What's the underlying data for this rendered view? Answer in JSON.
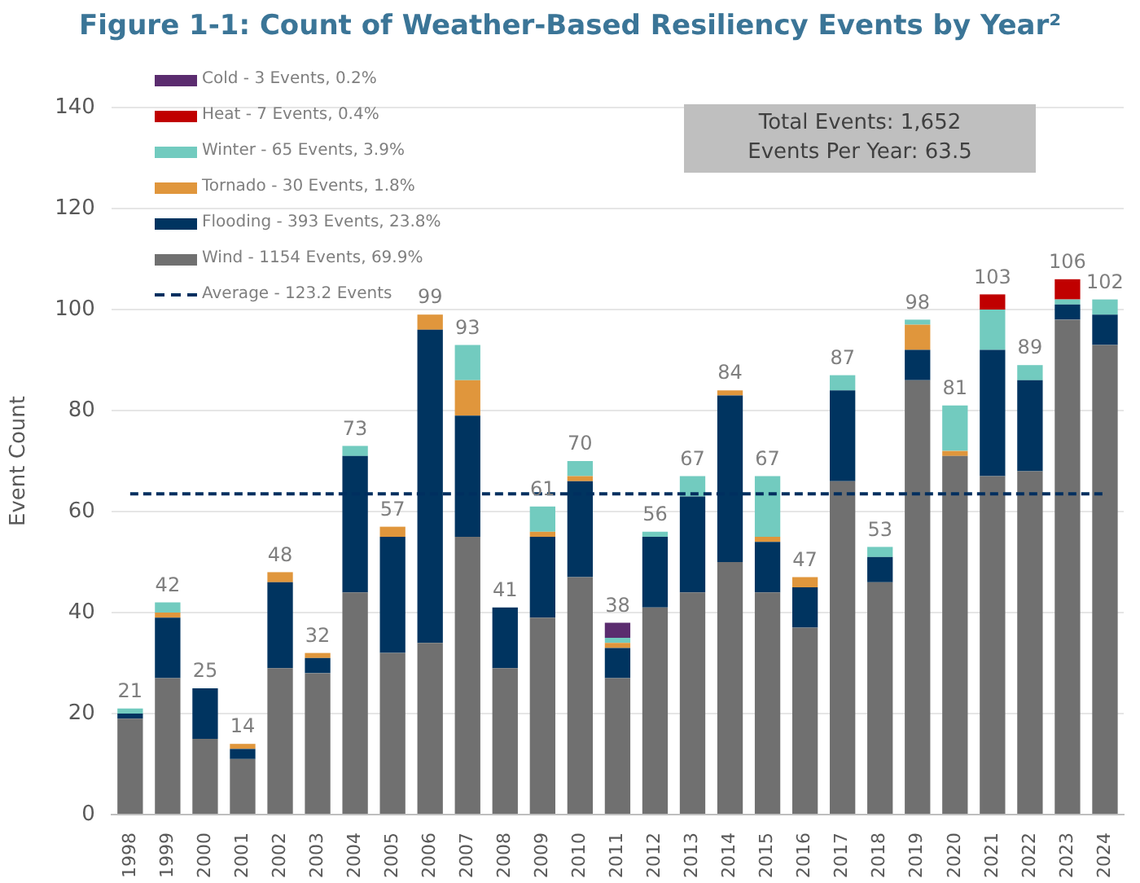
{
  "chart_data": {
    "type": "bar",
    "title": "Figure 1-1: Count of Weather-Based Resiliency Events by Year²",
    "ylabel": "Event Count",
    "categories": [
      "1998",
      "1999",
      "2000",
      "2001",
      "2002",
      "2003",
      "2004",
      "2005",
      "2006",
      "2007",
      "2008",
      "2009",
      "2010",
      "2011",
      "2012",
      "2013",
      "2014",
      "2015",
      "2016",
      "2017",
      "2018",
      "2019",
      "2020",
      "2021",
      "2022",
      "2023",
      "2024"
    ],
    "stacked": true,
    "series": [
      {
        "name": "Average - 123.2 Events",
        "type": "line",
        "line_style": "dashed",
        "marker": "none",
        "color": "#002f5f",
        "values": [
          63.5,
          63.5,
          63.5,
          63.5,
          63.5,
          63.5,
          63.5,
          63.5,
          63.5,
          63.5,
          63.5,
          63.5,
          63.5,
          63.5,
          63.5,
          63.5,
          63.5,
          63.5,
          63.5,
          63.5,
          63.5,
          63.5,
          63.5,
          63.5,
          63.5,
          63.5,
          63.5
        ]
      },
      {
        "name": "Wind - 1154 Events, 69.9%",
        "color": "#707070",
        "values": [
          19,
          27,
          15,
          11,
          29,
          28,
          44,
          32,
          34,
          55,
          29,
          39,
          47,
          27,
          41,
          44,
          50,
          44,
          37,
          66,
          46,
          86,
          71,
          67,
          68,
          98,
          93
        ]
      },
      {
        "name": "Flooding - 393 Events, 23.8%",
        "color": "#003460",
        "values": [
          1,
          12,
          10,
          2,
          17,
          3,
          27,
          23,
          62,
          24,
          12,
          16,
          19,
          6,
          14,
          19,
          33,
          10,
          8,
          18,
          5,
          6,
          0,
          25,
          18,
          3,
          6
        ]
      },
      {
        "name": "Tornado - 30 Events, 1.8%",
        "color": "#e0963c",
        "values": [
          0,
          1,
          0,
          1,
          2,
          1,
          0,
          2,
          3,
          7,
          0,
          1,
          1,
          1,
          0,
          0,
          1,
          1,
          2,
          0,
          0,
          5,
          1,
          0,
          0,
          0,
          0
        ]
      },
      {
        "name": "Winter - 65 Events, 3.9%",
        "color": "#72cbbf",
        "values": [
          1,
          2,
          0,
          0,
          0,
          0,
          2,
          0,
          0,
          7,
          0,
          5,
          3,
          1,
          1,
          4,
          0,
          12,
          0,
          3,
          2,
          1,
          9,
          8,
          3,
          1,
          3
        ]
      },
      {
        "name": "Heat - 7 Events, 0.4%",
        "color": "#c00000",
        "values": [
          0,
          0,
          0,
          0,
          0,
          0,
          0,
          0,
          0,
          0,
          0,
          0,
          0,
          0,
          0,
          0,
          0,
          0,
          0,
          0,
          0,
          0,
          0,
          3,
          0,
          4,
          0
        ]
      },
      {
        "name": "Cold - 3 Events, 0.2%",
        "color": "#5b2c6f",
        "values": [
          0,
          0,
          0,
          0,
          0,
          0,
          0,
          0,
          0,
          0,
          0,
          0,
          0,
          3,
          0,
          0,
          0,
          0,
          0,
          0,
          0,
          0,
          0,
          0,
          0,
          0,
          0
        ]
      }
    ],
    "totals": [
      "21",
      "42",
      "25",
      "14",
      "48",
      "32",
      "73",
      "57",
      "99",
      "93",
      "41",
      "61",
      "70",
      "38",
      "56",
      "67",
      "84",
      "67",
      "47",
      "87",
      "53",
      "98",
      "81",
      "103",
      "89",
      "106",
      "102"
    ],
    "ylim": [
      0,
      140
    ],
    "yticks": [
      0,
      20,
      40,
      60,
      80,
      100,
      120,
      140
    ],
    "grid": "y",
    "legend": "top left",
    "annotations": [
      "Total Events: 1,652",
      "Events Per Year: 63.5"
    ]
  }
}
